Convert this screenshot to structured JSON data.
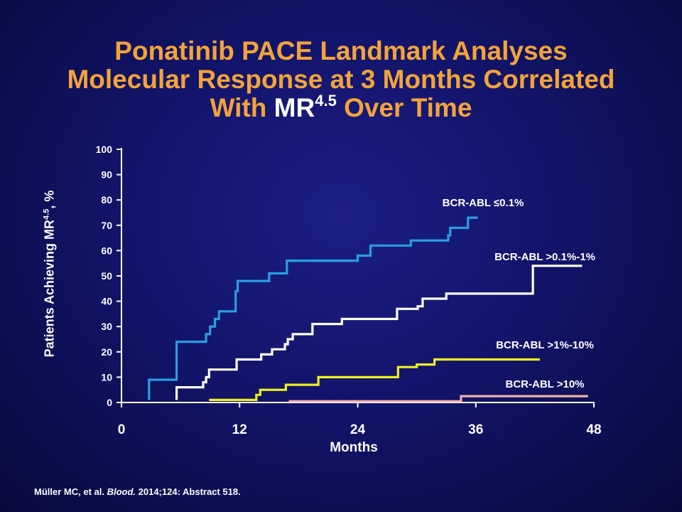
{
  "slide": {
    "title_line1": "Ponatinib PACE Landmark Analyses",
    "title_line2": "Molecular Response at 3 Months Correlated",
    "title_line3_before": "With ",
    "title_mr": "MR",
    "title_mr_sup": "4.5",
    "title_line3_after": " Over Time",
    "citation_authors": "Müller MC, et al. ",
    "citation_journal": "Blood.",
    "citation_rest": " 2014;124: Abstract 518.",
    "background_color": "#12146a",
    "title_color": "#f3a33a"
  },
  "chart_data": {
    "type": "line",
    "step": true,
    "ylabel_prefix": "Patients Achieving MR",
    "ylabel_sup": "4.5",
    "ylabel_suffix": ", %",
    "xlabel": "Months",
    "xlim": [
      0,
      48
    ],
    "ylim": [
      0,
      100
    ],
    "xticks": [
      0,
      12,
      24,
      36,
      48
    ],
    "yticks": [
      0,
      10,
      20,
      30,
      40,
      50,
      60,
      70,
      80,
      90,
      100
    ],
    "grid": false,
    "series": [
      {
        "name": "BCR-ABL ≤0.1%",
        "color": "#2a9ee0",
        "points": [
          [
            2.8,
            1
          ],
          [
            2.8,
            9
          ],
          [
            5.6,
            9
          ],
          [
            5.6,
            24
          ],
          [
            8.6,
            24
          ],
          [
            8.6,
            27
          ],
          [
            9.0,
            27
          ],
          [
            9.0,
            30
          ],
          [
            9.5,
            30
          ],
          [
            9.5,
            33
          ],
          [
            9.9,
            33
          ],
          [
            9.9,
            36
          ],
          [
            11.6,
            36
          ],
          [
            11.6,
            44
          ],
          [
            11.8,
            44
          ],
          [
            11.8,
            48
          ],
          [
            15.0,
            48
          ],
          [
            15.0,
            51
          ],
          [
            16.8,
            51
          ],
          [
            16.8,
            56
          ],
          [
            24.0,
            56
          ],
          [
            24.0,
            58
          ],
          [
            25.3,
            58
          ],
          [
            25.3,
            62
          ],
          [
            29.4,
            62
          ],
          [
            29.4,
            64
          ],
          [
            33.2,
            64
          ],
          [
            33.2,
            66
          ],
          [
            33.4,
            66
          ],
          [
            33.4,
            69
          ],
          [
            35.2,
            69
          ],
          [
            35.2,
            73
          ],
          [
            36.2,
            73
          ]
        ]
      },
      {
        "name": "BCR-ABL >0.1%-1%",
        "color": "#ffffff",
        "points": [
          [
            5.6,
            1
          ],
          [
            5.6,
            6
          ],
          [
            8.3,
            6
          ],
          [
            8.3,
            8
          ],
          [
            8.6,
            8
          ],
          [
            8.6,
            10
          ],
          [
            8.9,
            10
          ],
          [
            8.9,
            13
          ],
          [
            11.7,
            13
          ],
          [
            11.7,
            17
          ],
          [
            14.2,
            17
          ],
          [
            14.2,
            19
          ],
          [
            15.3,
            19
          ],
          [
            15.3,
            21
          ],
          [
            16.6,
            21
          ],
          [
            16.6,
            23
          ],
          [
            16.9,
            23
          ],
          [
            16.9,
            25
          ],
          [
            17.4,
            25
          ],
          [
            17.4,
            27
          ],
          [
            19.4,
            27
          ],
          [
            19.4,
            31
          ],
          [
            22.4,
            31
          ],
          [
            22.4,
            33
          ],
          [
            28.0,
            33
          ],
          [
            28.0,
            37
          ],
          [
            30.1,
            37
          ],
          [
            30.1,
            38
          ],
          [
            30.6,
            38
          ],
          [
            30.6,
            41
          ],
          [
            33.0,
            41
          ],
          [
            33.0,
            43
          ],
          [
            41.8,
            43
          ],
          [
            41.8,
            54
          ],
          [
            46.8,
            54
          ]
        ]
      },
      {
        "name": "BCR-ABL >1%-10%",
        "color": "#f0f020",
        "points": [
          [
            8.9,
            1
          ],
          [
            13.7,
            1
          ],
          [
            13.7,
            3
          ],
          [
            14.1,
            3
          ],
          [
            14.1,
            5
          ],
          [
            16.7,
            5
          ],
          [
            16.7,
            7
          ],
          [
            20.0,
            7
          ],
          [
            20.0,
            10
          ],
          [
            28.1,
            10
          ],
          [
            28.1,
            14
          ],
          [
            30.0,
            14
          ],
          [
            30.0,
            15
          ],
          [
            31.8,
            15
          ],
          [
            31.8,
            17
          ],
          [
            42.5,
            17
          ]
        ]
      },
      {
        "name": "BCR-ABL >10%",
        "color": "#f0b0a8",
        "points": [
          [
            17.0,
            0.5
          ],
          [
            34.5,
            0.5
          ],
          [
            34.5,
            2.5
          ],
          [
            47.4,
            2.5
          ]
        ]
      }
    ]
  }
}
